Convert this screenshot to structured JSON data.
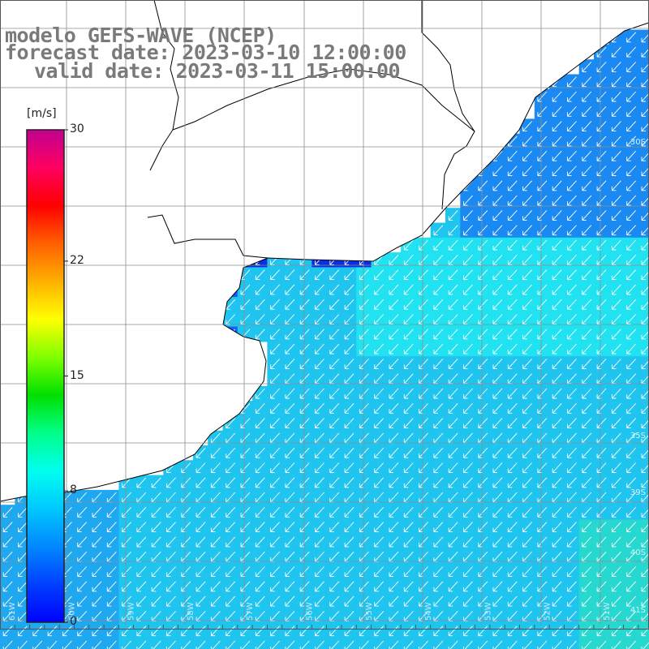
{
  "titles": {
    "model": "modelo GEFS-WAVE (NCEP)",
    "forecast": "forecast date: 2023-03-10 12:00:00",
    "valid": "valid date: 2023-03-11 15:00:00"
  },
  "colorbar": {
    "unit": "[m/s]",
    "ticks": [
      {
        "value": 30,
        "label": "30"
      },
      {
        "value": 22,
        "label": "22"
      },
      {
        "value": 15,
        "label": "15"
      },
      {
        "value": 8,
        "label": "8"
      },
      {
        "value": 0,
        "label": "0"
      }
    ],
    "colors": [
      "#0000ff",
      "#0040ff",
      "#0088ff",
      "#00c8ff",
      "#00ffee",
      "#00ff88",
      "#00e000",
      "#80ff00",
      "#ffff00",
      "#ffb000",
      "#ff6000",
      "#ff0000",
      "#ff0060",
      "#c00090"
    ]
  },
  "map": {
    "lat_labels": [
      "30S",
      "35S",
      "39S",
      "40S",
      "41S"
    ],
    "lon_labels": [
      "61W",
      "60W",
      "59W",
      "58W",
      "57W",
      "56W",
      "55W",
      "54W",
      "53W",
      "52W",
      "51W"
    ],
    "grid": "on",
    "arrow_direction": "toward south-west",
    "colors": {
      "land": "#ffffff",
      "coast": "#000000",
      "grid": "#8c8c8c",
      "arrow": "#ffffff"
    }
  }
}
